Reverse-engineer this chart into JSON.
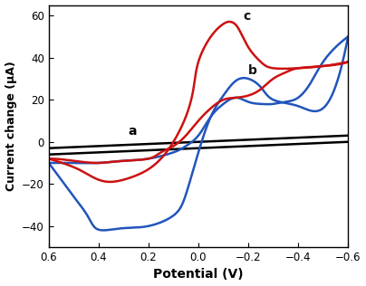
{
  "title": "",
  "xlabel": "Potential (V)",
  "ylabel": "Current change (μA)",
  "xlim": [
    0.6,
    -0.6
  ],
  "ylim": [
    -50,
    65
  ],
  "yticks": [
    -40,
    -20,
    0,
    20,
    40,
    60
  ],
  "xticks": [
    0.6,
    0.4,
    0.2,
    0.0,
    -0.2,
    -0.4,
    -0.6
  ],
  "curve_a_color": "#000000",
  "curve_b_color": "#2255bb",
  "curve_c_color": "#cc1111",
  "label_a": "a",
  "label_b": "b",
  "label_c": "c",
  "linewidth": 1.8,
  "background_color": "#ffffff"
}
